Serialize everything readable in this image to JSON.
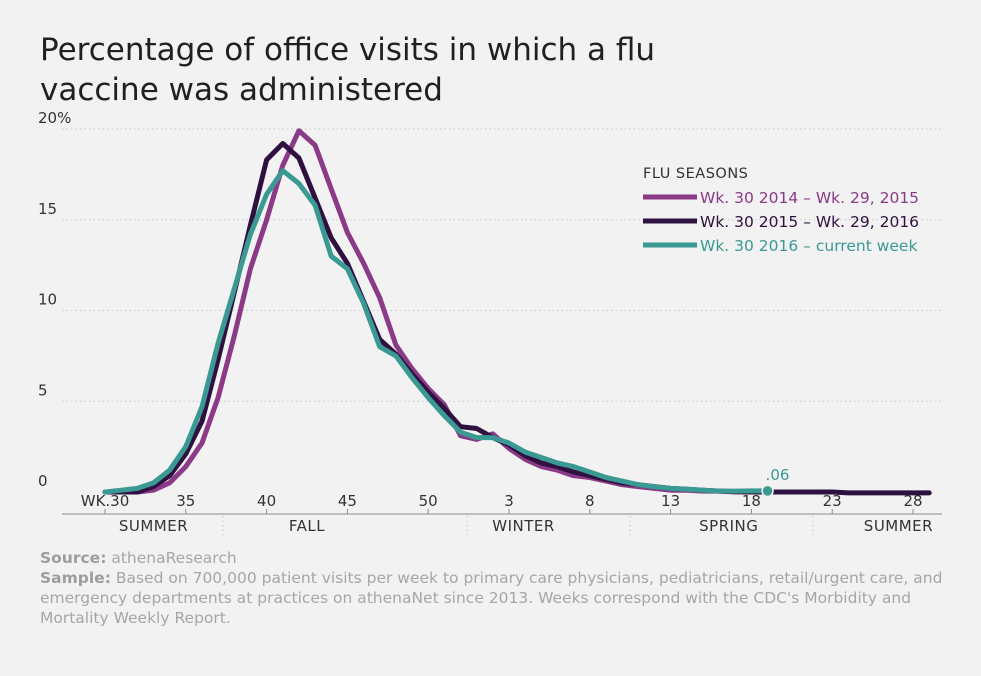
{
  "title": "Percentage of office visits in which a flu vaccine was administered",
  "source_label": "Source:",
  "source_text": "athenaResearch",
  "sample_label": "Sample:",
  "sample_text": "Based on 700,000 patient visits per week to primary care physicians, pediatricians, retail/urgent care, and emergency departments at practices on athenaNet since 2013. Weeks correspond with the CDC's Morbidity and Mortality Weekly Report.",
  "chart_data": {
    "type": "line",
    "title": "Percentage of office visits in which a flu vaccine was administered",
    "xlabel": "",
    "ylabel": "",
    "x_ticks": [
      {
        "i": 0,
        "label": "WK.30"
      },
      {
        "i": 5,
        "label": "35"
      },
      {
        "i": 10,
        "label": "40"
      },
      {
        "i": 15,
        "label": "45"
      },
      {
        "i": 20,
        "label": "50"
      },
      {
        "i": 25,
        "label": "3"
      },
      {
        "i": 30,
        "label": "8"
      },
      {
        "i": 35,
        "label": "13"
      },
      {
        "i": 40,
        "label": "18"
      },
      {
        "i": 45,
        "label": "23"
      },
      {
        "i": 50,
        "label": "28"
      }
    ],
    "y_ticks": [
      {
        "v": 0,
        "label": "0"
      },
      {
        "v": 5,
        "label": "5"
      },
      {
        "v": 10,
        "label": "10"
      },
      {
        "v": 15,
        "label": "15"
      },
      {
        "v": 20,
        "label": "20%"
      }
    ],
    "ylim": [
      0,
      20
    ],
    "grid": "dotted horizontal",
    "seasons": [
      {
        "label": "SUMMER",
        "center": 3
      },
      {
        "label": "FALL",
        "center": 12.5
      },
      {
        "label": "WINTER",
        "center": 25.9
      },
      {
        "label": "SPRING",
        "center": 38.6
      },
      {
        "label": "SUMMER",
        "center": 49.1
      }
    ],
    "season_dividers": [
      7.3,
      22.4,
      32.5,
      43.8
    ],
    "legend_title": "FLU SEASONS",
    "legend_position": "top-right",
    "series": [
      {
        "name": "Wk. 30 2014 – Wk. 29, 2015",
        "color": "#8b3a88",
        "x_index": [
          0,
          1,
          2,
          3,
          4,
          5,
          6,
          7,
          8,
          9,
          10,
          11,
          12,
          13,
          14,
          15,
          16,
          17,
          18,
          19,
          20,
          21,
          22,
          23,
          24,
          25,
          26,
          27,
          28,
          29,
          30,
          31,
          32,
          33,
          34,
          35,
          36,
          37,
          38,
          39,
          40
        ],
        "values": [
          0,
          0,
          0,
          0.1,
          0.5,
          1.4,
          2.7,
          5.2,
          8.6,
          12.3,
          15,
          18,
          19.9,
          19.1,
          16.7,
          14.3,
          12.6,
          10.7,
          8.1,
          6.8,
          5.7,
          4.8,
          3.1,
          2.9,
          3.2,
          2.4,
          1.8,
          1.4,
          1.2,
          0.9,
          0.8,
          0.6,
          0.4,
          0.3,
          0.2,
          0.1,
          0.1,
          0.05,
          0.05,
          0,
          0
        ]
      },
      {
        "name": "Wk. 30 2015 – Wk. 29, 2016",
        "color": "#2e1140",
        "x_index": [
          0,
          1,
          2,
          3,
          4,
          5,
          6,
          7,
          8,
          9,
          10,
          11,
          12,
          13,
          14,
          15,
          16,
          17,
          18,
          19,
          20,
          21,
          22,
          23,
          24,
          25,
          26,
          27,
          28,
          29,
          30,
          31,
          32,
          33,
          34,
          35,
          36,
          37,
          38,
          39,
          40,
          41,
          42,
          43,
          44,
          45,
          46,
          47,
          48,
          49,
          50,
          51
        ],
        "values": [
          0,
          0,
          0,
          0.3,
          0.9,
          2.1,
          3.9,
          7.3,
          11,
          14.7,
          18.3,
          19.2,
          18.4,
          16.2,
          14,
          12.6,
          10.5,
          8.4,
          7.6,
          6.5,
          5.5,
          4.6,
          3.6,
          3.5,
          3,
          2.6,
          2,
          1.6,
          1.4,
          1.1,
          0.9,
          0.7,
          0.5,
          0.4,
          0.3,
          0.2,
          0.15,
          0.1,
          0.05,
          0.02,
          0,
          0,
          0,
          0,
          0,
          0,
          -0.05,
          -0.05,
          -0.05,
          -0.05,
          -0.05,
          -0.05
        ]
      },
      {
        "name": "Wk. 30 2016 – current week",
        "color": "#3b9993",
        "x_index": [
          0,
          1,
          2,
          3,
          4,
          5,
          6,
          7,
          8,
          9,
          10,
          11,
          12,
          13,
          14,
          15,
          16,
          17,
          18,
          19,
          20,
          21,
          22,
          23,
          24,
          25,
          26,
          27,
          28,
          29,
          30,
          31,
          32,
          33,
          34,
          35,
          36,
          37,
          38,
          39,
          40,
          41
        ],
        "values": [
          0,
          0.1,
          0.2,
          0.5,
          1.2,
          2.5,
          4.7,
          8.2,
          11.2,
          14.2,
          16.4,
          17.7,
          17,
          15.8,
          13,
          12.3,
          10.4,
          8,
          7.5,
          6.3,
          5.2,
          4.2,
          3.3,
          3,
          3,
          2.7,
          2.2,
          1.9,
          1.6,
          1.4,
          1.1,
          0.8,
          0.6,
          0.4,
          0.3,
          0.2,
          0.15,
          0.1,
          0.05,
          0.05,
          0.06,
          0.06
        ]
      }
    ],
    "annotation": {
      "label": ".06",
      "i": 41,
      "v": 0.06,
      "color": "#3b9993"
    }
  }
}
